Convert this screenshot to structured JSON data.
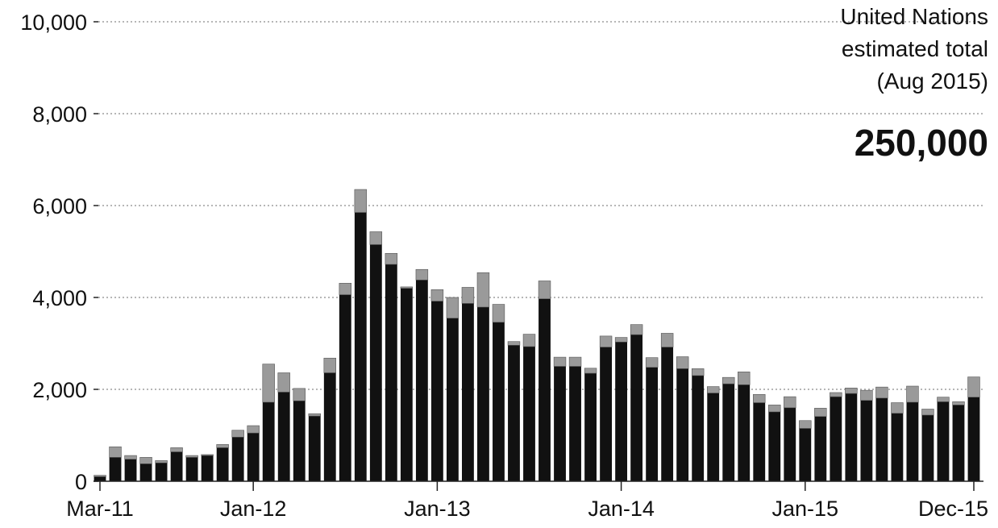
{
  "chart_data": {
    "type": "bar",
    "title": "",
    "xlabel": "",
    "ylabel": "",
    "ylim": [
      0,
      10000
    ],
    "y_ticks": [
      "0",
      "2,000",
      "4,000",
      "6,000",
      "8,000",
      "10,000"
    ],
    "x_tick_labels": [
      {
        "label": "Mar-11",
        "index": 0
      },
      {
        "label": "Jan-12",
        "index": 10
      },
      {
        "label": "Jan-13",
        "index": 22
      },
      {
        "label": "Jan-14",
        "index": 34
      },
      {
        "label": "Jan-15",
        "index": 46
      },
      {
        "label": "Dec-15",
        "index": 57
      }
    ],
    "grid": "horizontal dotted",
    "stacked": true,
    "colors": {
      "base": "#111111",
      "top": "#9a9a9a",
      "grid": "#8a8a8a",
      "axis": "#222222"
    },
    "series": [
      {
        "values": [
          100,
          520,
          480,
          380,
          400,
          640,
          520,
          560,
          730,
          960,
          1050,
          1720,
          1940,
          1750,
          1420,
          2360,
          4060,
          5850,
          5150,
          4720,
          4200,
          4380,
          3920,
          3550,
          3870,
          3790,
          3460,
          2960,
          2930,
          3970,
          2500,
          2500,
          2350,
          2920,
          3030,
          3190,
          2480,
          2920,
          2450,
          2300,
          1920,
          2120,
          2100,
          1710,
          1510,
          1600,
          1150,
          1410,
          1840,
          1910,
          1760,
          1810,
          1480,
          1720,
          1440,
          1730,
          1660,
          1830
        ]
      },
      {
        "values": [
          30,
          230,
          80,
          140,
          50,
          90,
          40,
          20,
          70,
          150,
          160,
          830,
          420,
          270,
          50,
          320,
          250,
          500,
          280,
          240,
          30,
          230,
          250,
          450,
          350,
          750,
          390,
          80,
          270,
          390,
          200,
          200,
          110,
          240,
          100,
          220,
          210,
          300,
          260,
          150,
          140,
          140,
          280,
          180,
          150,
          240,
          170,
          180,
          90,
          120,
          220,
          240,
          230,
          350,
          130,
          100,
          70,
          440
        ]
      }
    ],
    "annotations": {
      "line1": "United Nations",
      "line2": "estimated total",
      "line3": "(Aug 2015)",
      "value": "250,000"
    }
  }
}
